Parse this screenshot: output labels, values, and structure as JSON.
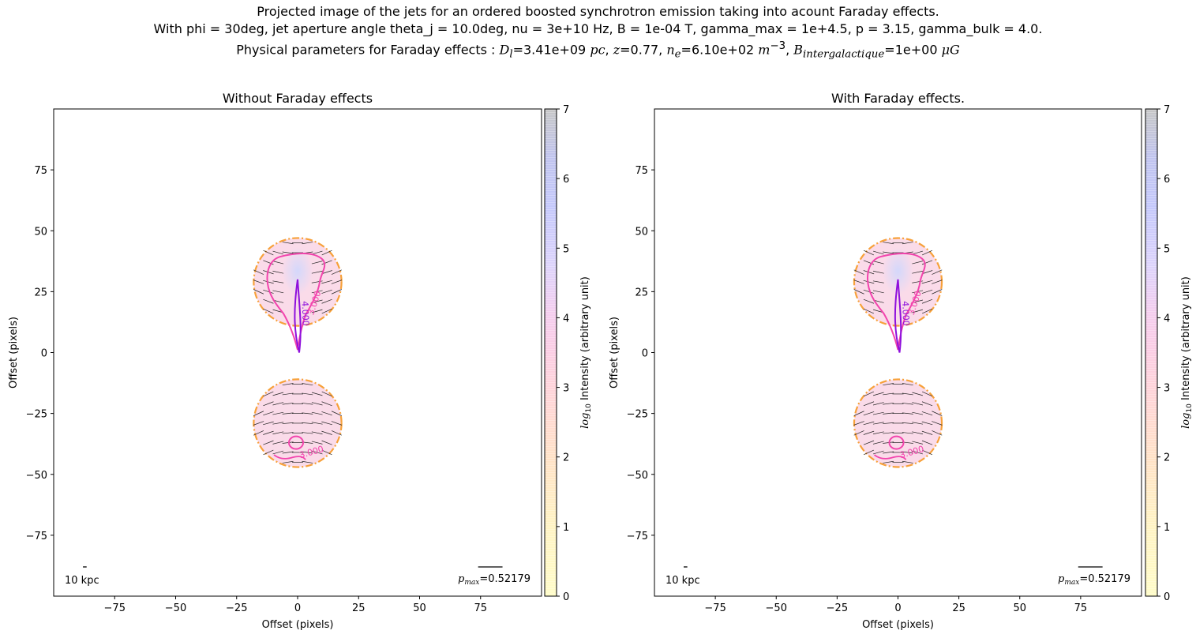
{
  "suptitle": {
    "line1": "Projected image of the jets for an ordered boosted synchrotron emission taking into acount Faraday effects.",
    "line2": "With phi = 30deg, jet aperture angle theta_j = 10.0deg, nu = 3e+10 Hz, B = 1e-04 T, gamma_max = 1e+4.5, p = 3.15, gamma_bulk = 4.0.",
    "line3": {
      "prefix": "Physical parameters for Faraday effects : ",
      "dl_sym": "D",
      "dl_sub": "l",
      "dl_val": "=3.41e+09 ",
      "dl_unit": "pc",
      "z_sym": "z",
      "z_val": "=0.77, ",
      "ne_sym": "n",
      "ne_sub": "e",
      "ne_val": "=6.10e+02 ",
      "ne_unit": "m",
      "ne_exp": "−3",
      "b_sym": "B",
      "b_sub": "intergalactique",
      "b_val": "=1e+00 ",
      "b_unit": "μG"
    }
  },
  "chart_data": [
    {
      "type": "heatmap",
      "title": "Without Faraday effects",
      "xlabel": "Offset (pixels)",
      "ylabel": "Offset (pixels)",
      "xlim": [
        -100,
        100
      ],
      "ylim": [
        -100,
        100
      ],
      "xticks": [
        -75,
        -50,
        -25,
        0,
        25,
        50,
        75
      ],
      "xtick_labels": [
        "−75",
        "−50",
        "−25",
        "0",
        "25",
        "50",
        "75"
      ],
      "yticks": [
        -75,
        -50,
        -25,
        0,
        25,
        50,
        75
      ],
      "ytick_labels": [
        "−75",
        "−50",
        "−25",
        "0",
        "25",
        "50",
        "75"
      ],
      "scale_bar_label": "10 kpc",
      "pmax_sym": "p",
      "pmax_sub": "max",
      "pmax_value": "=0.52179",
      "lobes": [
        {
          "cx": 0,
          "cy": 29,
          "r": 18
        },
        {
          "cx": 0,
          "cy": -29,
          "r": 18
        }
      ],
      "contour_labels": [
        {
          "text": "4.000",
          "x": 2,
          "y": 16,
          "angle": 88,
          "color": "#8f10dc"
        },
        {
          "text": "3.000",
          "x": 8,
          "y": 20,
          "angle": -72,
          "color": "#f244ad"
        },
        {
          "text": "3.000",
          "x": 6,
          "y": -42,
          "angle": -16,
          "color": "#f244ad"
        }
      ],
      "colorbar": {
        "label_log": "log",
        "label_sub": "10",
        "label_rest": " Intensity (arbitrary unit)",
        "range": [
          0,
          7
        ],
        "ticks": [
          "0",
          "1",
          "2",
          "3",
          "4",
          "5",
          "6",
          "7"
        ],
        "colors": [
          "#fffcc8",
          "#ffe2c6",
          "#ffd0df",
          "#f6cbe8",
          "#d2d4fb",
          "#b9c0f8",
          "#c8c8c8"
        ]
      }
    },
    {
      "type": "heatmap",
      "title": "With Faraday effects.",
      "xlabel": "Offset (pixels)",
      "ylabel": "Offset (pixels)",
      "xlim": [
        -100,
        100
      ],
      "ylim": [
        -100,
        100
      ],
      "xticks": [
        -75,
        -50,
        -25,
        0,
        25,
        50,
        75
      ],
      "xtick_labels": [
        "−75",
        "−50",
        "−25",
        "0",
        "25",
        "50",
        "75"
      ],
      "yticks": [
        -75,
        -50,
        -25,
        0,
        25,
        50,
        75
      ],
      "ytick_labels": [
        "−75",
        "−50",
        "−25",
        "0",
        "25",
        "50",
        "75"
      ],
      "scale_bar_label": "10 kpc",
      "pmax_sym": "p",
      "pmax_sub": "max",
      "pmax_value": "=0.52179",
      "lobes": [
        {
          "cx": 0,
          "cy": 29,
          "r": 18
        },
        {
          "cx": 0,
          "cy": -29,
          "r": 18
        }
      ],
      "contour_labels": [
        {
          "text": "4.000",
          "x": 2,
          "y": 16,
          "angle": 88,
          "color": "#8f10dc"
        },
        {
          "text": "3.000",
          "x": 8,
          "y": 20,
          "angle": -72,
          "color": "#f244ad"
        },
        {
          "text": "3.000",
          "x": 6,
          "y": -42,
          "angle": -16,
          "color": "#f244ad"
        }
      ],
      "colorbar": {
        "label_log": "log",
        "label_sub": "10",
        "label_rest": " Intensity (arbitrary unit)",
        "range": [
          0,
          7
        ],
        "ticks": [
          "0",
          "1",
          "2",
          "3",
          "4",
          "5",
          "6",
          "7"
        ],
        "colors": [
          "#fffcc8",
          "#ffe2c6",
          "#ffd0df",
          "#f6cbe8",
          "#d2d4fb",
          "#b9c0f8",
          "#c8c8c8"
        ]
      }
    }
  ]
}
